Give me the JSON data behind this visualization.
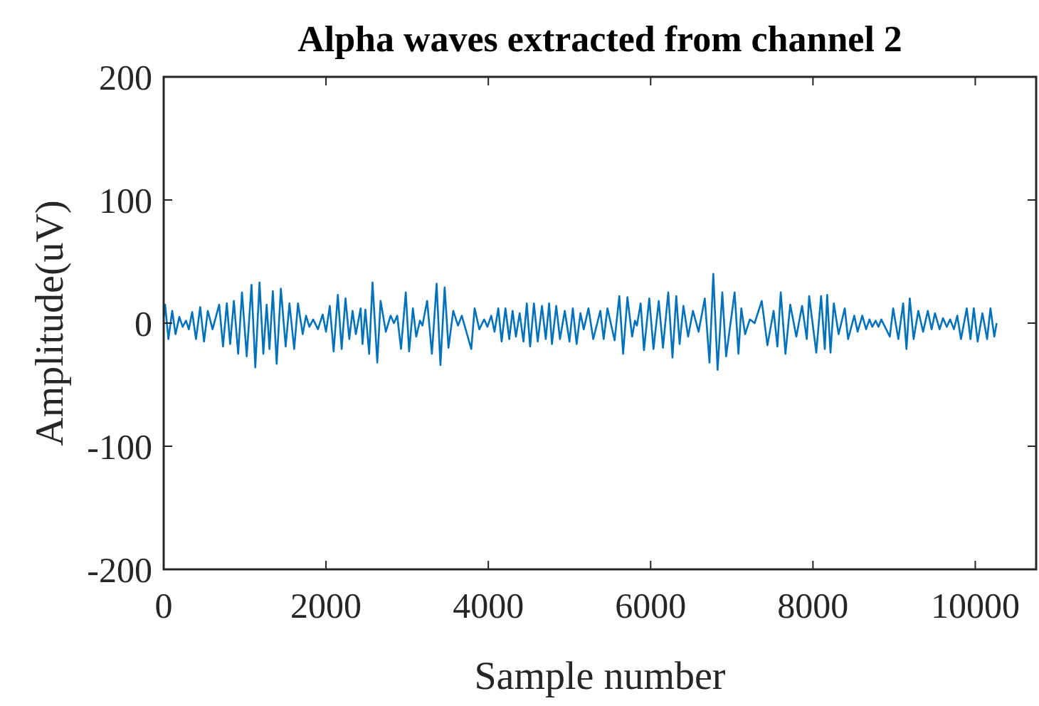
{
  "chart_data": {
    "type": "line",
    "title": "Alpha waves extracted from channel 2",
    "xlabel": "Sample number",
    "ylabel": "Amplitude(uV)",
    "xlim": [
      0,
      10750
    ],
    "xticks": [
      0,
      2000,
      4000,
      6000,
      8000,
      10000
    ],
    "ylim": [
      -200,
      200
    ],
    "yticks": [
      -200,
      -100,
      0,
      100,
      200
    ],
    "grid": false,
    "series": [
      {
        "color": "#0072bd",
        "x": [
          0,
          18,
          58,
          105,
          146,
          193,
          234,
          275,
          310,
          351,
          398,
          450,
          497,
          544,
          602,
          684,
          731,
          778,
          819,
          865,
          918,
          965,
          1023,
          1082,
          1129,
          1181,
          1228,
          1269,
          1304,
          1345,
          1392,
          1444,
          1503,
          1550,
          1608,
          1655,
          1713,
          1754,
          1795,
          1842,
          1901,
          1959,
          2000,
          2047,
          2094,
          2146,
          2193,
          2240,
          2287,
          2327,
          2368,
          2427,
          2450,
          2485,
          2532,
          2573,
          2632,
          2673,
          2737,
          2796,
          2837,
          2878,
          2924,
          2983,
          3024,
          3071,
          3112,
          3158,
          3188,
          3246,
          3305,
          3363,
          3410,
          3462,
          3509,
          3568,
          3626,
          3673,
          3790,
          3831,
          3889,
          3948,
          3989,
          4036,
          4076,
          4123,
          4164,
          4211,
          4258,
          4299,
          4340,
          4386,
          4433,
          4474,
          4515,
          4562,
          4609,
          4661,
          4708,
          4749,
          4784,
          4837,
          4883,
          4942,
          5000,
          5041,
          5088,
          5135,
          5176,
          5234,
          5293,
          5380,
          5421,
          5468,
          5556,
          5614,
          5661,
          5714,
          5772,
          5807,
          5831,
          5877,
          5918,
          5983,
          6035,
          6100,
          6152,
          6217,
          6269,
          6316,
          6357,
          6404,
          6462,
          6521,
          6591,
          6667,
          6725,
          6772,
          6825,
          6883,
          6930,
          7035,
          7082,
          7117,
          7164,
          7222,
          7281,
          7369,
          7439,
          7515,
          7562,
          7603,
          7661,
          7720,
          7795,
          7866,
          7924,
          7953,
          8041,
          8100,
          8146,
          8175,
          8216,
          8257,
          8316,
          8392,
          8433,
          8509,
          8550,
          8608,
          8655,
          8696,
          8731,
          8772,
          8807,
          8842,
          8947,
          8988,
          9052,
          9111,
          9152,
          9193,
          9240,
          9298,
          9357,
          9415,
          9462,
          9503,
          9561,
          9602,
          9649,
          9690,
          9737,
          9778,
          9824,
          9895,
          9941,
          9982,
          10029,
          10088,
          10146,
          10187,
          10234,
          10263
        ],
        "values": [
          5,
          15,
          -13,
          10,
          -9,
          5,
          -3,
          2,
          -5,
          9,
          -13,
          13,
          -15,
          10,
          -5,
          15,
          -19,
          16,
          -17,
          18,
          -25,
          25,
          -27,
          31,
          -36,
          33,
          -25,
          15,
          -21,
          26,
          -33,
          28,
          -19,
          16,
          -21,
          16,
          -9,
          6,
          -3,
          3,
          -5,
          7,
          -7,
          14,
          -23,
          23,
          -21,
          20,
          -13,
          10,
          -9,
          12,
          -17,
          11,
          -25,
          33,
          -32,
          18,
          -7,
          6,
          0,
          6,
          -21,
          25,
          -23,
          12,
          -11,
          2,
          -2,
          18,
          -25,
          32,
          -34,
          29,
          -20,
          10,
          -2,
          6,
          -21,
          12,
          -5,
          3,
          -3,
          6,
          -7,
          12,
          -15,
          12,
          -13,
          10,
          -11,
          8,
          -15,
          16,
          -19,
          16,
          -15,
          14,
          -13,
          16,
          -17,
          14,
          -13,
          10,
          -15,
          12,
          -17,
          8,
          -5,
          12,
          -13,
          10,
          -13,
          12,
          -14,
          22,
          -25,
          21,
          -11,
          2,
          -2,
          16,
          -22,
          20,
          -21,
          18,
          -20,
          25,
          -28,
          22,
          -17,
          14,
          -11,
          10,
          -7,
          20,
          -32,
          40,
          -38,
          25,
          -27,
          25,
          -25,
          12,
          -9,
          3,
          0,
          18,
          -18,
          10,
          -19,
          25,
          -25,
          15,
          -11,
          14,
          -13,
          22,
          -24,
          22,
          -21,
          23,
          -24,
          16,
          -9,
          12,
          -13,
          6,
          -7,
          6,
          -5,
          3,
          -3,
          2,
          -3,
          3,
          -11,
          12,
          -13,
          16,
          -21,
          20,
          -13,
          10,
          -7,
          10,
          -5,
          8,
          -5,
          4,
          -3,
          3,
          -5,
          6,
          -13,
          12,
          -13,
          12,
          -15,
          8,
          -13,
          12,
          -11,
          0
        ]
      }
    ]
  }
}
